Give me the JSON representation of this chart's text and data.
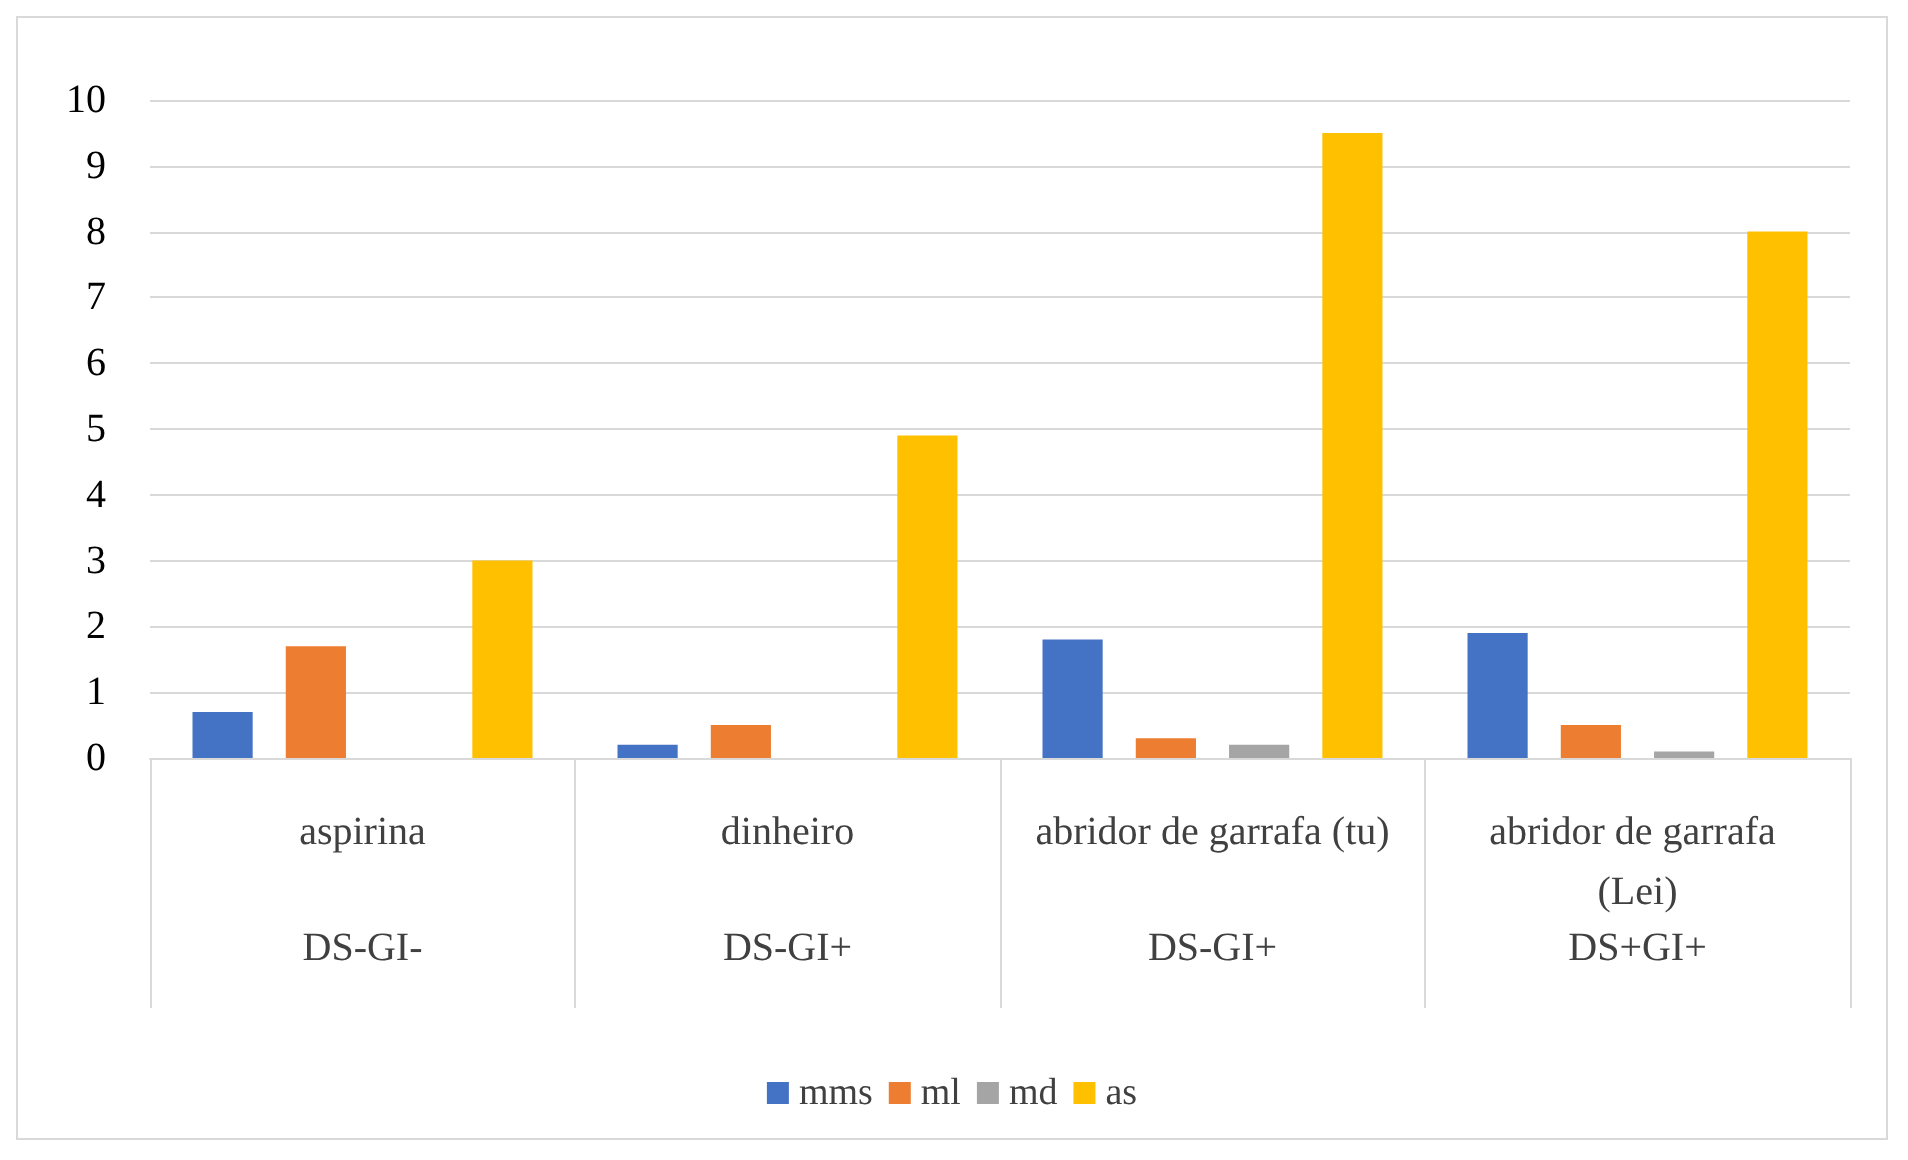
{
  "chart_data": {
    "type": "bar",
    "categories": [
      "aspirina",
      "dinheiro",
      "abridor de garrafa (tu)",
      "abridor de garrafa (Lei)"
    ],
    "series": [
      {
        "name": "mms",
        "color": "#4472c4",
        "values": [
          0.7,
          0.2,
          1.8,
          1.9
        ]
      },
      {
        "name": "ml",
        "color": "#ed7d31",
        "values": [
          1.7,
          0.5,
          0.3,
          0.5
        ]
      },
      {
        "name": "md",
        "color": "#a5a5a5",
        "values": [
          0,
          0,
          0.2,
          0.1
        ]
      },
      {
        "name": "as",
        "color": "#ffc000",
        "values": [
          3.0,
          4.9,
          9.5,
          8.0
        ]
      }
    ],
    "annotations": [
      "DS-GI-",
      "DS-GI+",
      "DS-GI+",
      "DS+GI+"
    ],
    "ylim": [
      0,
      10
    ],
    "yticks": [
      0,
      1,
      2,
      3,
      4,
      5,
      6,
      7,
      8,
      9,
      10
    ],
    "grid": "y",
    "legend": "bottom"
  }
}
